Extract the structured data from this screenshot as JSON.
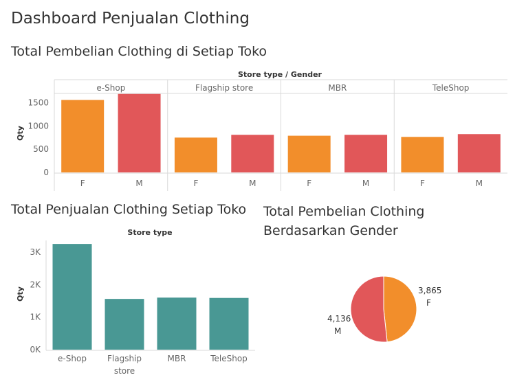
{
  "dashboard": {
    "title": "Dashboard Penjualan Clothing"
  },
  "colors": {
    "female": "#f28e2b",
    "male": "#e15759",
    "store_bar": "#499894",
    "grid": "#d9d9d9",
    "axis_text": "#666666"
  },
  "chart_data": [
    {
      "type": "bar",
      "title": "Total Pembelian Clothing di Setiap Toko",
      "header": "Store type  /  Gender",
      "ylabel": "Qty",
      "ylim": [
        0,
        1750
      ],
      "yticks": [
        0,
        500,
        1000,
        1500
      ],
      "groups": [
        "e-Shop",
        "Flagship store",
        "MBR",
        "TeleShop"
      ],
      "categories": [
        "F",
        "M"
      ],
      "series": [
        {
          "group": "e-Shop",
          "values": [
            1560,
            1690
          ]
        },
        {
          "group": "Flagship store",
          "values": [
            750,
            810
          ]
        },
        {
          "group": "MBR",
          "values": [
            790,
            810
          ]
        },
        {
          "group": "TeleShop",
          "values": [
            765,
            825
          ]
        }
      ],
      "grid": false
    },
    {
      "type": "bar",
      "title": "Total Penjualan Clothing Setiap Toko",
      "header": "Store type",
      "ylabel": "Qty",
      "ylim": [
        0,
        3450
      ],
      "yticks": [
        0,
        1000,
        2000,
        3000
      ],
      "ytick_labels": [
        "0K",
        "1K",
        "2K",
        "3K"
      ],
      "categories": [
        "e-Shop",
        "Flagship store",
        "MBR",
        "TeleShop"
      ],
      "values": [
        3250,
        1560,
        1600,
        1590
      ],
      "grid": false
    },
    {
      "type": "pie",
      "title": "Total Pembelian Clothing Berdasarkan Gender",
      "slices": [
        {
          "label": "F",
          "value": 3865,
          "value_label": "3,865"
        },
        {
          "label": "M",
          "value": 4136,
          "value_label": "4,136"
        }
      ]
    }
  ]
}
